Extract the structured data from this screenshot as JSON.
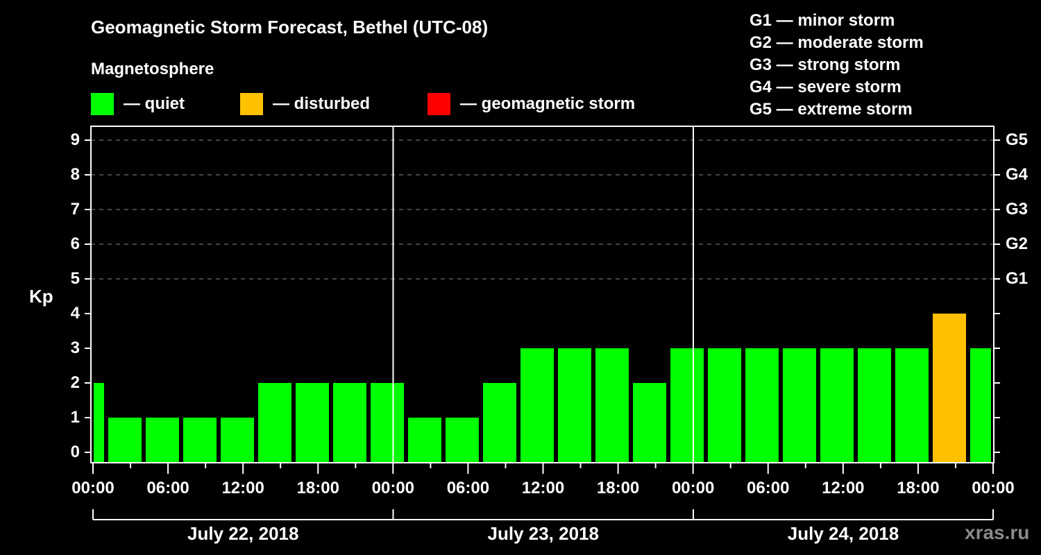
{
  "header": {
    "title": "Geomagnetic Storm Forecast, Bethel (UTC-08)",
    "subtitle": "Magnetosphere"
  },
  "legend": [
    {
      "label": "— quiet",
      "color": "#00ff00"
    },
    {
      "label": "— disturbed",
      "color": "#ffc000"
    },
    {
      "label": "— geomagnetic storm",
      "color": "#ff0000"
    }
  ],
  "g_scale": [
    "G1 — minor storm",
    "G2 — moderate storm",
    "G3 — strong storm",
    "G4 — severe storm",
    "G5 — extreme storm"
  ],
  "axes": {
    "y_label": "Kp",
    "y_ticks": [
      "0",
      "1",
      "2",
      "3",
      "4",
      "5",
      "6",
      "7",
      "8",
      "9"
    ],
    "g_ticks": [
      {
        "label": "G1",
        "kp": 5
      },
      {
        "label": "G2",
        "kp": 6
      },
      {
        "label": "G3",
        "kp": 7
      },
      {
        "label": "G4",
        "kp": 8
      },
      {
        "label": "G5",
        "kp": 9
      }
    ],
    "x_ticks": [
      "00:00",
      "06:00",
      "12:00",
      "18:00",
      "00:00",
      "06:00",
      "12:00",
      "18:00",
      "00:00",
      "06:00",
      "12:00",
      "18:00",
      "00:00"
    ],
    "days": [
      "July 22, 2018",
      "July 23, 2018",
      "July 24, 2018"
    ]
  },
  "watermark": "xras.ru",
  "chart_data": {
    "type": "bar",
    "title": "Geomagnetic Storm Forecast, Bethel (UTC-08)",
    "subtitle": "Magnetosphere",
    "xlabel": "",
    "ylabel": "Kp",
    "ylim": [
      0,
      9
    ],
    "grid": "dashed horizontal at Kp 5-9",
    "right_axis": {
      "G1": 5,
      "G2": 6,
      "G3": 7,
      "G4": 8,
      "G5": 9
    },
    "colors": {
      "quiet": "#00ff00",
      "disturbed": "#ffc000",
      "storm": "#ff0000"
    },
    "categories": [
      "Jul 22 ~00:00 (partial)",
      "Jul 22 02:00",
      "Jul 22 05:00",
      "Jul 22 08:00",
      "Jul 22 11:00",
      "Jul 22 14:00",
      "Jul 22 17:00",
      "Jul 22 20:00",
      "Jul 22 23:00",
      "Jul 23 02:00",
      "Jul 23 05:00",
      "Jul 23 08:00",
      "Jul 23 11:00",
      "Jul 23 14:00",
      "Jul 23 17:00",
      "Jul 23 20:00",
      "Jul 23 23:00",
      "Jul 24 02:00",
      "Jul 24 05:00",
      "Jul 24 08:00",
      "Jul 24 11:00",
      "Jul 24 14:00",
      "Jul 24 17:00",
      "Jul 24 20:00",
      "Jul 24 23:00 (partial)"
    ],
    "values": [
      2,
      1,
      1,
      1,
      1,
      2,
      2,
      2,
      2,
      1,
      1,
      2,
      3,
      3,
      3,
      2,
      3,
      3,
      3,
      3,
      3,
      3,
      3,
      4,
      3
    ],
    "status": [
      "quiet",
      "quiet",
      "quiet",
      "quiet",
      "quiet",
      "quiet",
      "quiet",
      "quiet",
      "quiet",
      "quiet",
      "quiet",
      "quiet",
      "quiet",
      "quiet",
      "quiet",
      "quiet",
      "quiet",
      "quiet",
      "quiet",
      "quiet",
      "quiet",
      "quiet",
      "quiet",
      "disturbed",
      "quiet"
    ]
  }
}
